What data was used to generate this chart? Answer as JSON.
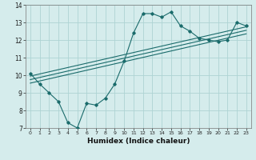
{
  "xlabel": "Humidex (Indice chaleur)",
  "xlim": [
    -0.5,
    23.5
  ],
  "ylim": [
    7,
    14
  ],
  "xticks": [
    0,
    1,
    2,
    3,
    4,
    5,
    6,
    7,
    8,
    9,
    10,
    11,
    12,
    13,
    14,
    15,
    16,
    17,
    18,
    19,
    20,
    21,
    22,
    23
  ],
  "yticks": [
    7,
    8,
    9,
    10,
    11,
    12,
    13,
    14
  ],
  "bg_color": "#d5ecec",
  "grid_color": "#aed4d4",
  "line_color": "#1a6b6b",
  "data_line": {
    "x": [
      0,
      1,
      2,
      3,
      4,
      5,
      6,
      7,
      8,
      9,
      10,
      11,
      12,
      13,
      14,
      15,
      16,
      17,
      18,
      19,
      20,
      21,
      22,
      23
    ],
    "y": [
      10.1,
      9.5,
      9.0,
      8.5,
      7.3,
      7.0,
      8.4,
      8.3,
      8.7,
      9.5,
      10.8,
      12.4,
      13.5,
      13.5,
      13.3,
      13.6,
      12.8,
      12.5,
      12.1,
      12.0,
      11.9,
      12.0,
      13.0,
      12.8
    ]
  },
  "trend_lines": [
    {
      "x": [
        0,
        23
      ],
      "y": [
        9.55,
        12.35
      ]
    },
    {
      "x": [
        0,
        23
      ],
      "y": [
        9.75,
        12.55
      ]
    },
    {
      "x": [
        0,
        23
      ],
      "y": [
        9.95,
        12.75
      ]
    }
  ]
}
